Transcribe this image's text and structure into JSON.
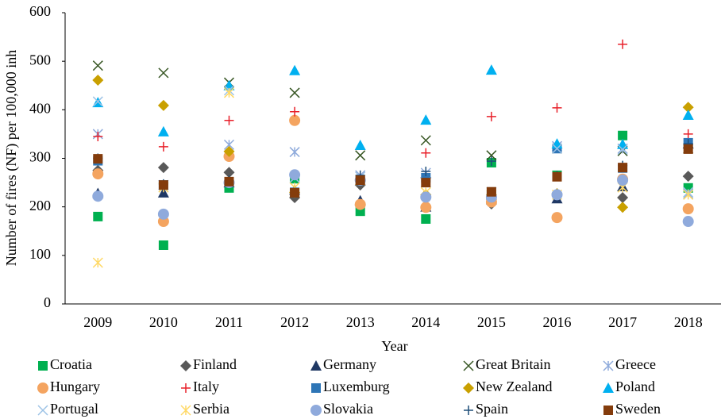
{
  "chart_data": {
    "type": "scatter",
    "xlabel": "Year",
    "ylabel": "Number of fires (NF) per 100,000 inh",
    "categories": [
      "2009",
      "2010",
      "2011",
      "2012",
      "2013",
      "2014",
      "2015",
      "2016",
      "2017",
      "2018"
    ],
    "ylim": [
      0,
      600
    ],
    "yticks": [
      0,
      100,
      200,
      300,
      400,
      500,
      600
    ],
    "series": [
      {
        "name": "Croatia",
        "color": "#00b050",
        "marker": "square",
        "values": [
          180,
          121,
          239,
          258,
          191,
          175,
          291,
          265,
          347,
          239
        ]
      },
      {
        "name": "Finland",
        "color": "#595959",
        "marker": "diamond",
        "values": [
          275,
          281,
          271,
          219,
          245,
          260,
          206,
          227,
          219,
          263
        ]
      },
      {
        "name": "Germany",
        "color": "#1f3864",
        "marker": "triangle",
        "values": [
          228,
          229,
          250,
          235,
          213,
          200,
          225,
          217,
          242,
          330
        ]
      },
      {
        "name": "Great Britain",
        "color": "#375623",
        "marker": "x",
        "values": [
          491,
          476,
          456,
          435,
          306,
          337,
          306,
          320,
          315,
          320
        ]
      },
      {
        "name": "Greece",
        "color": "#8eaadb",
        "marker": "asterisk",
        "values": [
          350,
          245,
          328,
          313,
          265,
          270,
          230,
          325,
          320,
          227
        ]
      },
      {
        "name": "Hungary",
        "color": "#f4a460",
        "marker": "circle",
        "values": [
          268,
          170,
          304,
          378,
          205,
          199,
          210,
          178,
          257,
          196
        ]
      },
      {
        "name": "Italy",
        "color": "#e8202a",
        "marker": "plus",
        "values": [
          345,
          324,
          378,
          396,
          260,
          311,
          386,
          404,
          535,
          350
        ]
      },
      {
        "name": "Luxemburg",
        "color": "#2e75b6",
        "marker": "square",
        "values": [
          295,
          245,
          250,
          230,
          255,
          260,
          225,
          320,
          280,
          332
        ]
      },
      {
        "name": "New Zealand",
        "color": "#c9a000",
        "marker": "diamond",
        "values": [
          461,
          409,
          314,
          230,
          255,
          225,
          225,
          227,
          199,
          405
        ]
      },
      {
        "name": "Poland",
        "color": "#00b0f0",
        "marker": "triangle",
        "values": [
          415,
          355,
          450,
          481,
          327,
          379,
          482,
          330,
          329,
          389
        ]
      },
      {
        "name": "Portugal",
        "color": "#9dc3e6",
        "marker": "x",
        "values": [
          417,
          240,
          440,
          260,
          262,
          250,
          230,
          320,
          318,
          230
        ]
      },
      {
        "name": "Serbia",
        "color": "#ffd966",
        "marker": "asterisk",
        "values": [
          85,
          240,
          435,
          240,
          255,
          230,
          225,
          225,
          240,
          225
        ]
      },
      {
        "name": "Slovakia",
        "color": "#8faadc",
        "marker": "circle",
        "values": [
          222,
          185,
          250,
          266,
          255,
          220,
          220,
          225,
          255,
          170
        ]
      },
      {
        "name": "Spain",
        "color": "#1f4e79",
        "marker": "plus",
        "values": [
          300,
          247,
          255,
          230,
          265,
          273,
          294,
          264,
          285,
          330
        ]
      },
      {
        "name": "Sweden",
        "color": "#843c0c",
        "marker": "square",
        "values": [
          299,
          245,
          252,
          229,
          255,
          250,
          231,
          262,
          281,
          319
        ]
      }
    ]
  }
}
